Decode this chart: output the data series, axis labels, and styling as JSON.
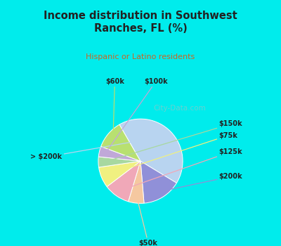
{
  "title": "Income distribution in Southwest\nRanches, FL (%)",
  "subtitle": "Hispanic or Latino residents",
  "slices": [
    {
      "label": "> $200k",
      "value": 42,
      "color": "#b8d4f0"
    },
    {
      "label": "$200k",
      "value": 15,
      "color": "#9090d8"
    },
    {
      "label": "$50k",
      "value": 6,
      "color": "#f5c8a0"
    },
    {
      "label": "$125k",
      "value": 10,
      "color": "#f0a8b8"
    },
    {
      "label": "$75k",
      "value": 8,
      "color": "#f0f080"
    },
    {
      "label": "$150k",
      "value": 4,
      "color": "#a8d8a0"
    },
    {
      "label": "$100k",
      "value": 4,
      "color": "#c0a8d8"
    },
    {
      "label": "$60k",
      "value": 11,
      "color": "#b8e070"
    }
  ],
  "background_color_top": "#00ecec",
  "background_color_chart": "#dff0e8",
  "title_color": "#222222",
  "subtitle_color": "#cc6622",
  "watermark": "City-Data.com",
  "watermark_color": "#bbbbbb",
  "watermark_alpha": 0.55
}
